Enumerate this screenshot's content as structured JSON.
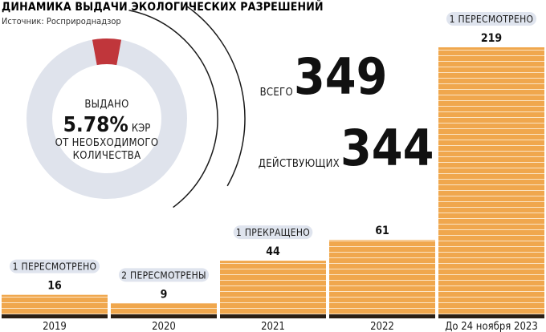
{
  "title": "ДИНАМИКА ВЫДАЧИ ЭКОЛОГИЧЕСКИХ РАЗРЕШЕНИЙ",
  "source": "Источник: Росприроднадзор",
  "donut": {
    "line1": "ВЫДАНО",
    "percent": "5.78%",
    "unit": "КЭР",
    "line3": "ОТ НЕОБХОДИМОГО",
    "line4": "КОЛИЧЕСТВА",
    "share": 0.0578
  },
  "totals": {
    "all_label": "ВСЕГО",
    "all_value": "349",
    "active_label": "ДЕЙСТВУЮЩИХ",
    "active_value": "344"
  },
  "colors": {
    "bar": "#f0a74d",
    "bar_stripe": "#fbe4c4",
    "bar_base": "#2b1f14",
    "donut_ring": "#dfe3ec",
    "donut_slice": "#c0363b",
    "badge": "#dfe4ee"
  },
  "chart_data": {
    "type": "bar",
    "categories": [
      "2019",
      "2020",
      "2021",
      "2022",
      "До 24 ноября 2023"
    ],
    "values": [
      16,
      9,
      44,
      61,
      219
    ],
    "value_labels": [
      "16",
      "9",
      "44",
      "61",
      "219"
    ],
    "notes": [
      "1 ПЕРЕСМОТРЕНО",
      "2 ПЕРЕСМОТРЕНЫ",
      "1 ПРЕКРАЩЕНО",
      "",
      "1 ПЕРЕСМОТРЕНО"
    ],
    "title": "ДИНАМИКА ВЫДАЧИ ЭКОЛОГИЧЕСКИХ РАЗРЕШЕНИЙ",
    "xlabel": "",
    "ylabel": "",
    "ylim": [
      0,
      219
    ],
    "grid": false,
    "legend": "none"
  }
}
